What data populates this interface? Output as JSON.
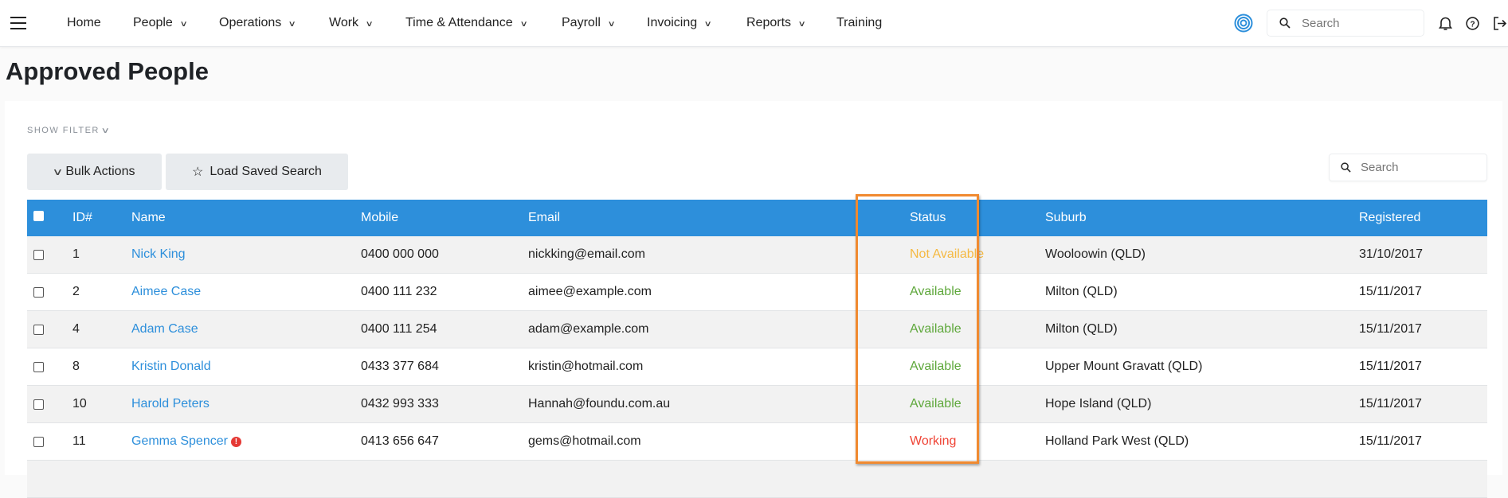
{
  "nav": {
    "items": [
      {
        "label": "Home",
        "dropdown": false
      },
      {
        "label": "People",
        "dropdown": true
      },
      {
        "label": "Operations",
        "dropdown": true
      },
      {
        "label": "Work",
        "dropdown": true
      },
      {
        "label": "Time & Attendance",
        "dropdown": true
      },
      {
        "label": "Payroll",
        "dropdown": true
      },
      {
        "label": "Invoicing",
        "dropdown": true
      },
      {
        "label": "Reports",
        "dropdown": true
      },
      {
        "label": "Training",
        "dropdown": false
      }
    ],
    "search_placeholder": "Search",
    "accent": "#2d8fdb"
  },
  "page": {
    "title": "Approved People",
    "show_filter": "SHOW FILTER",
    "bulk_actions": "Bulk Actions",
    "load_saved_search": "Load Saved Search",
    "search_placeholder": "Search"
  },
  "table": {
    "headers": [
      "ID#",
      "Name",
      "Mobile",
      "Email",
      "Status",
      "Suburb",
      "Registered"
    ],
    "header_color": "#2d8fdb",
    "rows": [
      {
        "id": "1",
        "name": "Nick King",
        "mobile": "0400 000 000",
        "email": "nickking@email.com",
        "status": "Not Available",
        "suburb": "Wooloowin (QLD)",
        "registered": "31/10/2017",
        "alert": false
      },
      {
        "id": "2",
        "name": "Aimee Case",
        "mobile": "0400 111 232",
        "email": "aimee@example.com",
        "status": "Available",
        "suburb": "Milton (QLD)",
        "registered": "15/11/2017",
        "alert": false
      },
      {
        "id": "4",
        "name": "Adam Case",
        "mobile": "0400 111 254",
        "email": "adam@example.com",
        "status": "Available",
        "suburb": "Milton (QLD)",
        "registered": "15/11/2017",
        "alert": false
      },
      {
        "id": "8",
        "name": "Kristin Donald",
        "mobile": "0433 377 684",
        "email": "kristin@hotmail.com",
        "status": "Available",
        "suburb": "Upper Mount Gravatt (QLD)",
        "registered": "15/11/2017",
        "alert": false
      },
      {
        "id": "10",
        "name": "Harold Peters",
        "mobile": "0432 993 333",
        "email": "Hannah@foundu.com.au",
        "status": "Available",
        "suburb": "Hope Island (QLD)",
        "registered": "15/11/2017",
        "alert": false
      },
      {
        "id": "11",
        "name": "Gemma Spencer",
        "mobile": "0413 656 647",
        "email": "gems@hotmail.com",
        "status": "Working",
        "suburb": "Holland Park West (QLD)",
        "registered": "15/11/2017",
        "alert": true
      }
    ],
    "status_colors": {
      "Not Available": "#f5b942",
      "Available": "#5fa83c",
      "Working": "#ef4436"
    },
    "highlight_color": "#f08a30"
  }
}
